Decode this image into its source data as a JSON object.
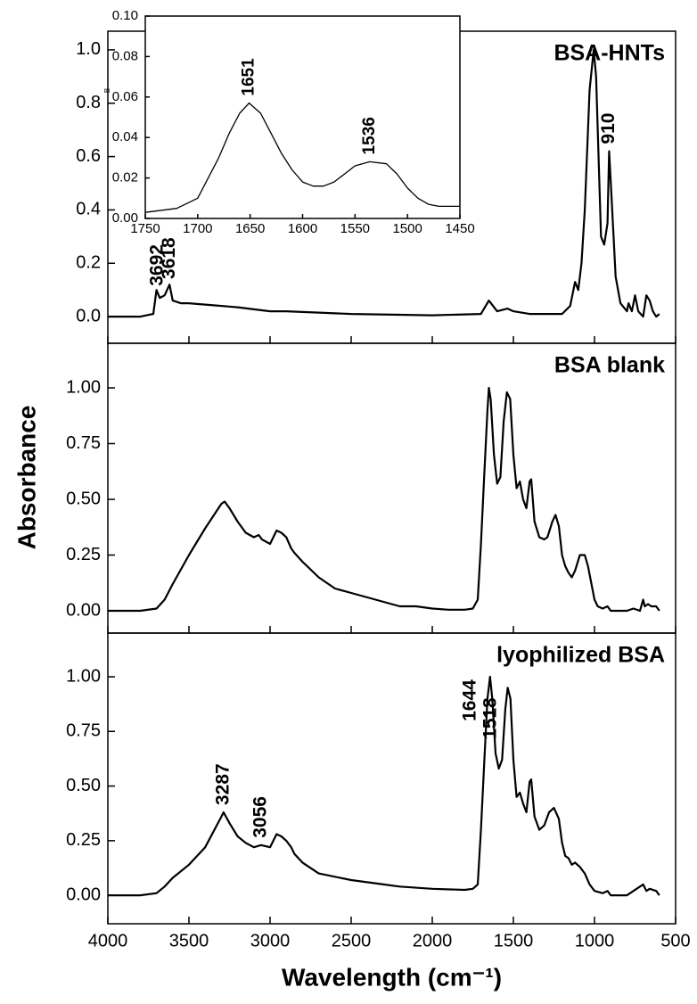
{
  "chart_data": [
    {
      "type": "line",
      "title": "BSA-HNTs",
      "annotations": [
        "3692",
        "3618",
        "910"
      ],
      "xlim": [
        4000,
        500
      ],
      "ylim": [
        -0.1,
        1.07
      ],
      "yticks": [
        {
          "value": 0,
          "label": "0.0"
        },
        0.2,
        0.4,
        0.6,
        0.8,
        {
          "value": 1,
          "label": "1.0"
        }
      ],
      "x": [
        4000,
        3800,
        3720,
        3700,
        3680,
        3650,
        3620,
        3600,
        3550,
        3500,
        3400,
        3200,
        3000,
        2900,
        2500,
        2000,
        1700,
        1651,
        1600,
        1536,
        1500,
        1400,
        1200,
        1150,
        1120,
        1100,
        1080,
        1060,
        1030,
        1005,
        990,
        960,
        940,
        920,
        910,
        895,
        870,
        840,
        800,
        790,
        770,
        750,
        730,
        700,
        680,
        660,
        640,
        620,
        600
      ],
      "values": [
        0,
        0,
        0.01,
        0.1,
        0.07,
        0.08,
        0.12,
        0.06,
        0.05,
        0.05,
        0.045,
        0.035,
        0.02,
        0.02,
        0.01,
        0.005,
        0.01,
        0.06,
        0.02,
        0.03,
        0.02,
        0.01,
        0.01,
        0.04,
        0.13,
        0.1,
        0.2,
        0.4,
        0.85,
        1.0,
        0.9,
        0.3,
        0.27,
        0.35,
        0.62,
        0.45,
        0.15,
        0.05,
        0.02,
        0.05,
        0.02,
        0.08,
        0.02,
        0.0,
        0.08,
        0.06,
        0.02,
        0.0,
        0.01
      ],
      "color": "#000000"
    },
    {
      "type": "line",
      "title": "BSA blank",
      "ylabel": "Absorbance",
      "xlim": [
        4000,
        500
      ],
      "ylim": [
        -0.1,
        1.2
      ],
      "yticks": [
        {
          "value": 0,
          "label": "0.00"
        },
        0.25,
        {
          "value": 0.5,
          "label": "0.50"
        },
        0.75,
        {
          "value": 1,
          "label": "1.00"
        }
      ],
      "x": [
        4000,
        3800,
        3700,
        3650,
        3600,
        3500,
        3400,
        3300,
        3280,
        3250,
        3200,
        3150,
        3100,
        3070,
        3050,
        3000,
        2960,
        2930,
        2900,
        2870,
        2850,
        2800,
        2700,
        2600,
        2500,
        2400,
        2300,
        2200,
        2100,
        2000,
        1900,
        1800,
        1750,
        1720,
        1700,
        1680,
        1660,
        1651,
        1640,
        1620,
        1600,
        1580,
        1560,
        1540,
        1520,
        1500,
        1480,
        1460,
        1440,
        1420,
        1400,
        1390,
        1370,
        1340,
        1310,
        1290,
        1260,
        1240,
        1220,
        1200,
        1180,
        1160,
        1140,
        1120,
        1090,
        1060,
        1040,
        1000,
        980,
        950,
        920,
        900,
        850,
        800,
        760,
        720,
        700,
        690,
        670,
        650,
        620,
        600
      ],
      "values": [
        0,
        0,
        0.01,
        0.05,
        0.12,
        0.25,
        0.37,
        0.48,
        0.49,
        0.46,
        0.4,
        0.35,
        0.33,
        0.34,
        0.32,
        0.3,
        0.36,
        0.35,
        0.33,
        0.28,
        0.26,
        0.22,
        0.15,
        0.1,
        0.08,
        0.06,
        0.04,
        0.02,
        0.02,
        0.01,
        0.005,
        0.005,
        0.01,
        0.05,
        0.3,
        0.6,
        0.9,
        1.0,
        0.95,
        0.7,
        0.57,
        0.6,
        0.85,
        0.98,
        0.95,
        0.7,
        0.55,
        0.58,
        0.5,
        0.46,
        0.58,
        0.59,
        0.4,
        0.33,
        0.32,
        0.33,
        0.4,
        0.43,
        0.38,
        0.25,
        0.2,
        0.17,
        0.15,
        0.18,
        0.25,
        0.25,
        0.2,
        0.05,
        0.02,
        0.01,
        0.02,
        0,
        0,
        0,
        0.01,
        0,
        0.05,
        0.02,
        0.03,
        0.02,
        0.02,
        0
      ],
      "color": "#000000"
    },
    {
      "type": "line",
      "title": "lyophilized BSA",
      "annotations": [
        "3287",
        "3056",
        "1644",
        "1518"
      ],
      "xlabel": "Wavelength (cm⁻¹)",
      "xlim": [
        4000,
        500
      ],
      "ylim": [
        -0.13,
        1.2
      ],
      "xticks": [
        4000,
        3500,
        3000,
        2500,
        2000,
        1500,
        1000,
        500
      ],
      "yticks": [
        {
          "value": 0,
          "label": "0.00"
        },
        0.25,
        {
          "value": 0.5,
          "label": "0.50"
        },
        0.75,
        {
          "value": 1,
          "label": "1.00"
        }
      ],
      "x": [
        4000,
        3800,
        3700,
        3650,
        3600,
        3500,
        3400,
        3300,
        3287,
        3250,
        3200,
        3150,
        3100,
        3056,
        3000,
        2960,
        2930,
        2900,
        2870,
        2850,
        2800,
        2700,
        2500,
        2300,
        2200,
        2000,
        1800,
        1750,
        1720,
        1700,
        1680,
        1660,
        1644,
        1630,
        1610,
        1590,
        1570,
        1550,
        1535,
        1518,
        1500,
        1480,
        1460,
        1440,
        1420,
        1400,
        1390,
        1370,
        1340,
        1310,
        1280,
        1250,
        1220,
        1200,
        1180,
        1160,
        1140,
        1120,
        1090,
        1060,
        1030,
        1000,
        950,
        920,
        900,
        800,
        700,
        680,
        660,
        620,
        600
      ],
      "values": [
        0,
        0,
        0.01,
        0.04,
        0.08,
        0.14,
        0.22,
        0.36,
        0.38,
        0.33,
        0.27,
        0.24,
        0.22,
        0.23,
        0.22,
        0.28,
        0.27,
        0.25,
        0.22,
        0.19,
        0.15,
        0.1,
        0.07,
        0.05,
        0.04,
        0.03,
        0.025,
        0.03,
        0.05,
        0.3,
        0.6,
        0.9,
        1.0,
        0.9,
        0.65,
        0.58,
        0.62,
        0.85,
        0.95,
        0.9,
        0.62,
        0.45,
        0.47,
        0.42,
        0.38,
        0.52,
        0.53,
        0.36,
        0.3,
        0.32,
        0.38,
        0.4,
        0.35,
        0.24,
        0.18,
        0.17,
        0.14,
        0.15,
        0.13,
        0.1,
        0.05,
        0.02,
        0.01,
        0.02,
        0,
        0,
        0.05,
        0.02,
        0.03,
        0.02,
        0
      ],
      "color": "#000000"
    },
    {
      "type": "line",
      "annotations": [
        "1651",
        "1536"
      ],
      "ylabel": "B",
      "xlim": [
        1750,
        1450
      ],
      "ylim": [
        0,
        0.1
      ],
      "xticks": [
        1750,
        1700,
        1650,
        1600,
        1550,
        1500,
        1450
      ],
      "yticks": [
        {
          "value": 0,
          "label": "0.00"
        },
        0.02,
        0.04,
        0.06,
        0.08,
        {
          "value": 0.1,
          "label": "0.10"
        }
      ],
      "x": [
        1750,
        1720,
        1700,
        1690,
        1680,
        1670,
        1660,
        1651,
        1640,
        1630,
        1620,
        1610,
        1600,
        1590,
        1580,
        1570,
        1560,
        1550,
        1536,
        1520,
        1510,
        1500,
        1490,
        1480,
        1470,
        1450
      ],
      "values": [
        0.003,
        0.005,
        0.01,
        0.02,
        0.03,
        0.042,
        0.052,
        0.057,
        0.052,
        0.042,
        0.032,
        0.024,
        0.018,
        0.016,
        0.016,
        0.018,
        0.022,
        0.026,
        0.028,
        0.027,
        0.022,
        0.015,
        0.01,
        0.007,
        0.006,
        0.006
      ],
      "color": "#000000"
    }
  ]
}
